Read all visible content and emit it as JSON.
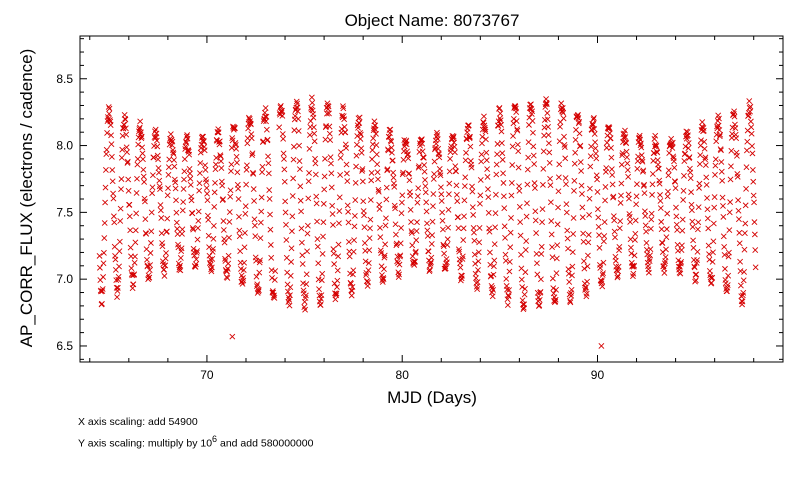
{
  "chart_data": {
    "type": "scatter",
    "title": "Object Name:  8073767",
    "xlabel": "MJD (Days)",
    "ylabel": "AP_CORR_FLUX (electrons / cadence)",
    "xlim": [
      63.5,
      99.5
    ],
    "ylim": [
      6.38,
      8.82
    ],
    "x_ticks": [
      70,
      80,
      90
    ],
    "x_tick_labels": [
      "70",
      "80",
      "90"
    ],
    "x_minor_step": 2,
    "y_ticks": [
      6.5,
      7.0,
      7.5,
      8.0,
      8.5
    ],
    "y_tick_labels": [
      "6.5",
      "7.0",
      "7.5",
      "8.0",
      "8.5"
    ],
    "y_minor_step": 0.1,
    "marker": "x",
    "color": "#d40000",
    "grid": false,
    "x_range": [
      64.5,
      98.1
    ],
    "cadence_days": 0.0204,
    "mean": 7.6,
    "amplitude": 0.72,
    "period_days": 0.8,
    "outliers": [
      {
        "x": 71.3,
        "y": 6.57
      },
      {
        "x": 90.2,
        "y": 6.5
      }
    ]
  },
  "footnotes": {
    "x_scaling": "X axis  scaling: add 54900",
    "y_scaling_prefix": "Y axis  scaling: multiply by 10",
    "y_scaling_exp": "6",
    "y_scaling_suffix": " and add 580000000"
  }
}
